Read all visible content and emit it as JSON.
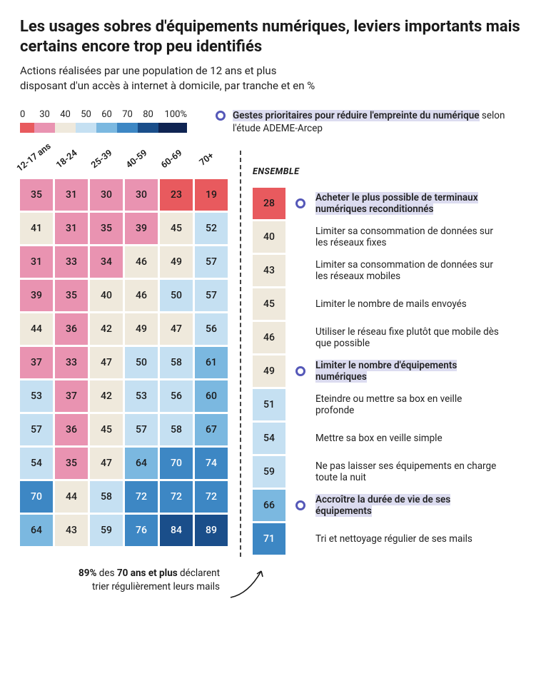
{
  "title": "Les usages sobres d'équipements numériques, leviers importants mais certains encore trop peu identifiés",
  "subtitle_l1": "Actions réalisées par une population de 12 ans et plus",
  "subtitle_l2": "disposant d'un accès à internet à domicile, par tranche et en %",
  "legend": {
    "ticks": [
      "0",
      "30",
      "40",
      "50",
      "60",
      "70",
      "80",
      "100%"
    ],
    "colors": [
      "#e85a5e",
      "#e993b1",
      "#efe9dc",
      "#c5e0f2",
      "#7bb8e0",
      "#3d87c4",
      "#1a4e8a",
      "#0f2452"
    ]
  },
  "priority_note_hl": "Gestes prioritaires pour réduire l'empreinte du numérique",
  "priority_note_rest": " selon l'étude ADEME-Arcep",
  "age_cols": [
    "12-17 ans",
    "18-24",
    "25-39",
    "40-59",
    "60-69",
    "70+"
  ],
  "ensemble_header": "ENSEMBLE",
  "rows": [
    {
      "vals": [
        35,
        31,
        30,
        30,
        23,
        19
      ],
      "ens": 28,
      "priority": true,
      "label_hl": "Acheter le plus possible de terminaux numériques reconditionnés",
      "label": ""
    },
    {
      "vals": [
        41,
        31,
        35,
        39,
        45,
        52
      ],
      "ens": 40,
      "priority": false,
      "label_hl": "",
      "label": "Limiter sa consommation de données sur les réseaux fixes"
    },
    {
      "vals": [
        31,
        33,
        34,
        46,
        49,
        57
      ],
      "ens": 43,
      "priority": false,
      "label_hl": "",
      "label": "Limiter sa consommation de données sur les réseaux mobiles"
    },
    {
      "vals": [
        39,
        35,
        40,
        46,
        50,
        57
      ],
      "ens": 45,
      "priority": false,
      "label_hl": "",
      "label": "Limiter le nombre de mails envoyés"
    },
    {
      "vals": [
        44,
        36,
        42,
        49,
        47,
        56
      ],
      "ens": 46,
      "priority": false,
      "label_hl": "",
      "label": "Utiliser le réseau fixe plutôt que mobile dès que possible"
    },
    {
      "vals": [
        37,
        33,
        47,
        50,
        58,
        61
      ],
      "ens": 49,
      "priority": true,
      "label_hl": "Limiter le nombre d'équipements numériques",
      "label": ""
    },
    {
      "vals": [
        53,
        37,
        42,
        53,
        56,
        60
      ],
      "ens": 51,
      "priority": false,
      "label_hl": "",
      "label": "Eteindre ou mettre sa box en veille profonde"
    },
    {
      "vals": [
        57,
        36,
        45,
        57,
        58,
        67
      ],
      "ens": 54,
      "priority": false,
      "label_hl": "",
      "label": "Mettre sa box en veille simple"
    },
    {
      "vals": [
        54,
        35,
        47,
        64,
        70,
        74
      ],
      "ens": 59,
      "priority": false,
      "label_hl": "",
      "label": "Ne pas laisser ses équipements en charge toute la nuit"
    },
    {
      "vals": [
        70,
        44,
        58,
        72,
        72,
        72
      ],
      "ens": 66,
      "priority": true,
      "label_hl": "Accroître la durée de vie de ses équipements",
      "label": ""
    },
    {
      "vals": [
        64,
        43,
        59,
        76,
        84,
        89
      ],
      "ens": 71,
      "priority": false,
      "label_hl": "",
      "label": "Tri et nettoyage régulier de ses mails"
    }
  ],
  "color_scale": {
    "breaks": [
      0,
      30,
      40,
      50,
      60,
      70,
      80,
      100
    ],
    "colors": [
      "#e85a5e",
      "#e993b1",
      "#efe9dc",
      "#c5e0f2",
      "#7bb8e0",
      "#3d87c4",
      "#1a4e8a",
      "#0f2452"
    ],
    "text_dark": "#1a1a1a",
    "text_light": "#ffffff",
    "light_text_from_index": 5
  },
  "annotation": {
    "pct": "89%",
    "age": "70 ans et plus",
    "rest_before": " des ",
    "rest_after": " déclarent trier régulièrement leurs mails"
  }
}
